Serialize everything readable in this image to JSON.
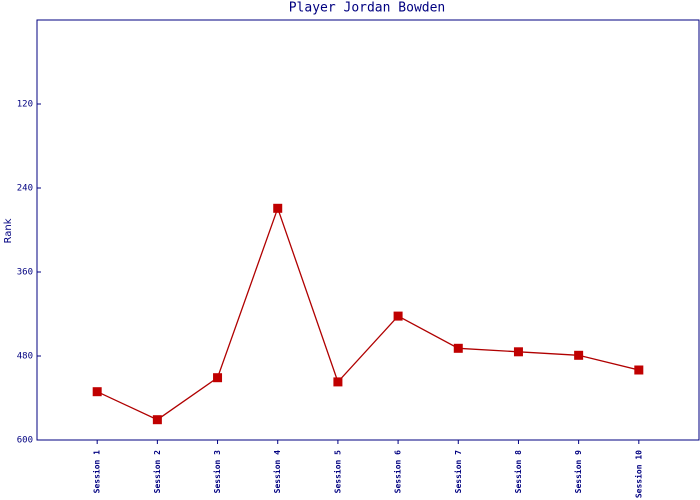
{
  "chart_data": {
    "type": "line",
    "title": "Player Jordan Bowden",
    "y_label": "Rank",
    "categories": [
      "Session 1",
      "Session 2",
      "Session 3",
      "Session 4",
      "Session 5",
      "Session 6",
      "Session 7",
      "Session 8",
      "Session 9",
      "Session 10"
    ],
    "values": [
      531,
      571,
      511,
      269,
      517,
      423,
      469,
      474,
      479,
      500
    ],
    "color": "#b00000",
    "marker_color": "#c00000",
    "ylim": [
      0,
      600
    ],
    "y_inverted": true,
    "yticks": [
      120,
      240,
      360,
      480,
      600
    ],
    "grid": false
  }
}
